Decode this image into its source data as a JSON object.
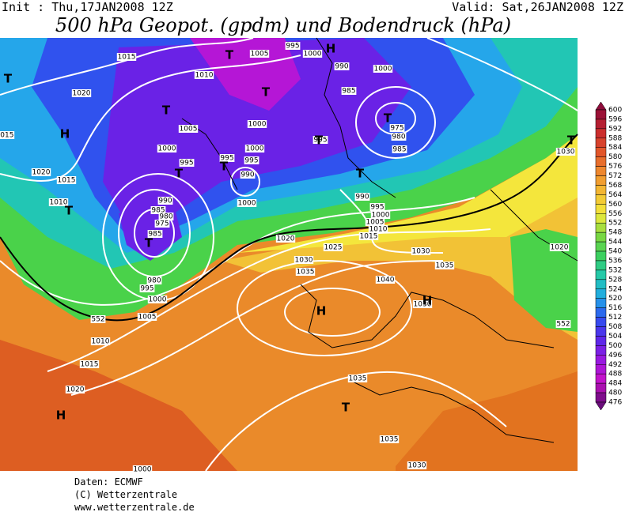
{
  "header": {
    "init": "Init : Thu,17JAN2008  12Z",
    "valid": "Valid: Sat,26JAN2008  12Z",
    "title": "500 hPa Geopot. (gpdm) und Bodendruck (hPa)"
  },
  "colorbar": {
    "levels": [
      600,
      596,
      592,
      588,
      584,
      580,
      576,
      572,
      568,
      564,
      560,
      556,
      552,
      548,
      544,
      540,
      536,
      532,
      528,
      524,
      520,
      516,
      512,
      508,
      504,
      500,
      496,
      492,
      488,
      484,
      480,
      476
    ]
  },
  "map": {
    "isobar_labels": [
      "1015",
      "1010",
      "1005",
      "995",
      "1000",
      "990",
      "1000",
      "985",
      "975",
      "980",
      "985",
      "1020",
      "1005",
      "1000",
      "1000",
      "995",
      "995",
      "1000",
      "995",
      "990",
      "995",
      "1015",
      "1020",
      "1015",
      "1010",
      "990",
      "985",
      "980",
      "975",
      "985",
      "1000",
      "990",
      "995",
      "1000",
      "1005",
      "1010",
      "1015",
      "1020",
      "1025",
      "1030",
      "1035",
      "1030",
      "1035",
      "1040",
      "1030",
      "980",
      "995",
      "1000",
      "1005",
      "1010",
      "1015",
      "1020",
      "1035",
      "1035",
      "1030",
      "1030",
      "1020",
      "552",
      "552",
      "1000"
    ],
    "centers": [
      "T",
      "H",
      "T",
      "T",
      "H",
      "T",
      "T",
      "T",
      "T",
      "T",
      "T",
      "T",
      "T",
      "H",
      "H",
      "T",
      "H",
      "T"
    ]
  },
  "footer": {
    "source": "Daten: ECMWF",
    "copyright": "(C) Wetterzentrale",
    "url": "www.wetterzentrale.de"
  }
}
